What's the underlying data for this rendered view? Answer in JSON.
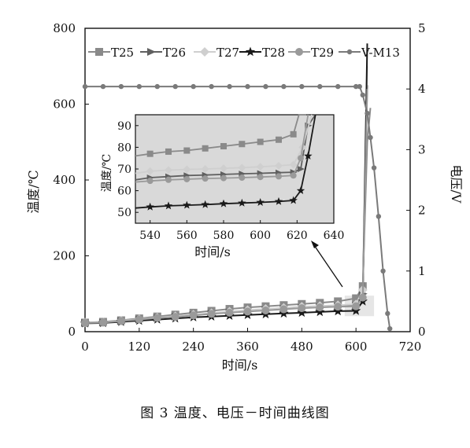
{
  "caption": "图 3   温度、电压－时间曲线图",
  "chart_data": [
    {
      "type": "line",
      "xlabel": "时间/s",
      "ylabel": "温度/℃",
      "y2label": "电压/V",
      "xlim": [
        0,
        720
      ],
      "ylim": [
        0,
        800
      ],
      "y2lim": [
        0,
        5
      ],
      "x_ticks": [
        0,
        120,
        240,
        360,
        480,
        600,
        720
      ],
      "y_ticks": [
        0,
        200,
        400,
        600,
        800
      ],
      "y2_ticks": [
        0,
        1,
        2,
        3,
        4,
        5
      ],
      "legend": "top",
      "colors": {
        "T25": "#8a8a8a",
        "T26": "#606060",
        "T27": "#cfcfcf",
        "T28": "#1a1a1a",
        "T29": "#9a9a9a",
        "V-M13": "#7a7a7a"
      },
      "series": [
        {
          "name": "T25",
          "marker": "square",
          "x": [
            0,
            40,
            80,
            120,
            160,
            200,
            240,
            280,
            320,
            360,
            400,
            440,
            480,
            520,
            560,
            600,
            615,
            625,
            632
          ],
          "y": [
            24,
            26,
            30,
            35,
            40,
            45,
            50,
            55,
            60,
            64,
            67,
            70,
            73,
            76,
            80,
            88,
            120,
            500,
            590
          ]
        },
        {
          "name": "T26",
          "marker": "triangle-right",
          "x": [
            0,
            40,
            80,
            120,
            160,
            200,
            240,
            280,
            320,
            360,
            400,
            440,
            480,
            520,
            560,
            600,
            615,
            625
          ],
          "y": [
            23,
            24,
            28,
            32,
            36,
            40,
            44,
            48,
            51,
            54,
            57,
            60,
            63,
            65,
            67,
            69,
            100,
            650
          ]
        },
        {
          "name": "T27",
          "marker": "diamond",
          "x": [
            0,
            40,
            80,
            120,
            160,
            200,
            240,
            280,
            320,
            360,
            400,
            440,
            480,
            520,
            560,
            600,
            615,
            625
          ],
          "y": [
            24,
            25,
            29,
            33,
            37,
            41,
            45,
            49,
            53,
            57,
            60,
            63,
            66,
            68,
            70,
            72,
            110,
            700
          ]
        },
        {
          "name": "T28",
          "marker": "star",
          "x": [
            0,
            40,
            80,
            120,
            160,
            200,
            240,
            280,
            320,
            360,
            400,
            440,
            480,
            520,
            560,
            600,
            615,
            625
          ],
          "y": [
            22,
            23,
            26,
            29,
            32,
            35,
            38,
            40,
            42,
            44,
            46,
            48,
            50,
            52,
            54,
            55,
            80,
            760
          ]
        },
        {
          "name": "T29",
          "marker": "circle",
          "x": [
            0,
            40,
            80,
            120,
            160,
            200,
            240,
            280,
            320,
            360,
            400,
            440,
            480,
            520,
            560,
            600,
            615,
            625
          ],
          "y": [
            23,
            24,
            28,
            32,
            36,
            39,
            43,
            47,
            50,
            53,
            56,
            59,
            62,
            64,
            66,
            67,
            90,
            640
          ]
        },
        {
          "name": "V-M13",
          "axis": "right",
          "marker": "small-circle",
          "x": [
            0,
            40,
            80,
            120,
            160,
            200,
            240,
            280,
            320,
            360,
            400,
            440,
            480,
            520,
            560,
            600,
            608,
            615,
            625,
            632,
            640,
            650,
            660,
            670,
            675
          ],
          "y": [
            4.04,
            4.04,
            4.04,
            4.04,
            4.04,
            4.04,
            4.04,
            4.04,
            4.04,
            4.04,
            4.04,
            4.04,
            4.04,
            4.04,
            4.04,
            4.04,
            4.04,
            3.9,
            3.6,
            3.2,
            2.7,
            1.9,
            1.0,
            0.3,
            0.05
          ]
        }
      ]
    },
    {
      "type": "line",
      "inset": true,
      "xlabel": "时间/s",
      "ylabel": "温度/℃",
      "xlim": [
        532,
        640
      ],
      "ylim": [
        45,
        95
      ],
      "x_ticks": [
        540,
        560,
        580,
        600,
        620,
        640
      ],
      "y_ticks": [
        50,
        60,
        70,
        80,
        90
      ],
      "series": [
        {
          "name": "T25",
          "x": [
            532,
            540,
            550,
            560,
            570,
            580,
            590,
            600,
            610,
            618,
            621,
            625
          ],
          "y": [
            76,
            77,
            78,
            78.5,
            79.5,
            80.5,
            81.5,
            82.5,
            83.5,
            86,
            95,
            95
          ]
        },
        {
          "name": "T26",
          "x": [
            532,
            540,
            550,
            560,
            570,
            580,
            590,
            600,
            610,
            618,
            622,
            626,
            630
          ],
          "y": [
            65,
            66,
            66.5,
            67,
            67.2,
            67.5,
            67.8,
            68,
            68.3,
            68.5,
            70,
            90,
            95
          ]
        },
        {
          "name": "T27",
          "x": [
            532,
            540,
            550,
            560,
            570,
            580,
            590,
            600,
            610,
            618,
            623,
            628
          ],
          "y": [
            68,
            69,
            69.5,
            69.8,
            70,
            70.3,
            70.6,
            71,
            71.5,
            72,
            80,
            95
          ]
        },
        {
          "name": "T28",
          "x": [
            532,
            540,
            550,
            560,
            570,
            580,
            590,
            600,
            610,
            618,
            622,
            626,
            630
          ],
          "y": [
            52,
            52.5,
            53,
            53.3,
            53.6,
            54,
            54.3,
            54.6,
            55,
            55.5,
            60,
            76,
            95
          ]
        },
        {
          "name": "T29",
          "x": [
            532,
            540,
            550,
            560,
            570,
            580,
            590,
            600,
            610,
            618,
            622,
            626
          ],
          "y": [
            64,
            64.5,
            65,
            65.3,
            65.6,
            65.8,
            66,
            66.3,
            66.6,
            67,
            75,
            95
          ]
        }
      ]
    }
  ]
}
